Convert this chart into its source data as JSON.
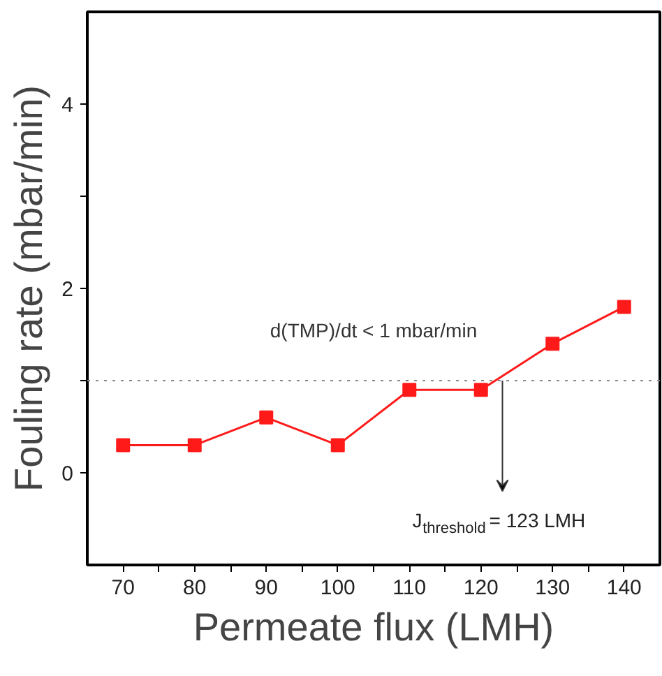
{
  "chart_data": {
    "type": "line",
    "xlabel": "Permeate flux (LMH)",
    "ylabel": "Fouling rate (mbar/min)",
    "x": [
      70,
      80,
      90,
      100,
      110,
      120,
      130,
      140
    ],
    "series": [
      {
        "color": "#ff1a1a",
        "values": [
          0.3,
          0.3,
          0.6,
          0.3,
          0.9,
          0.9,
          1.4,
          1.8
        ]
      }
    ],
    "marker": "square",
    "line_style": "solid",
    "grid": false,
    "xlim": [
      65,
      145
    ],
    "xticks": [
      70,
      {
        "value": 75,
        "label": null
      },
      80,
      {
        "value": 85,
        "label": null
      },
      90,
      {
        "value": 95,
        "label": null
      },
      100,
      {
        "value": 105,
        "label": null
      },
      110,
      {
        "value": 115,
        "label": null
      },
      120,
      {
        "value": 125,
        "label": null
      },
      130,
      {
        "value": 135,
        "label": null
      },
      140
    ],
    "ylim": [
      -1,
      5
    ],
    "yticks": [
      0,
      {
        "value": 1,
        "label": null
      },
      2,
      {
        "value": 3,
        "label": null
      },
      4
    ],
    "ref_lines": [
      {
        "axis": "y",
        "value": 1,
        "label": "d(TMP)/dt < 1 mbar/min",
        "color": "#888888",
        "line_style": "dotted"
      }
    ],
    "annotations": [
      {
        "text": "J$_{threshold}$ = 123 LMH",
        "x": 123,
        "y": 1
      }
    ]
  }
}
